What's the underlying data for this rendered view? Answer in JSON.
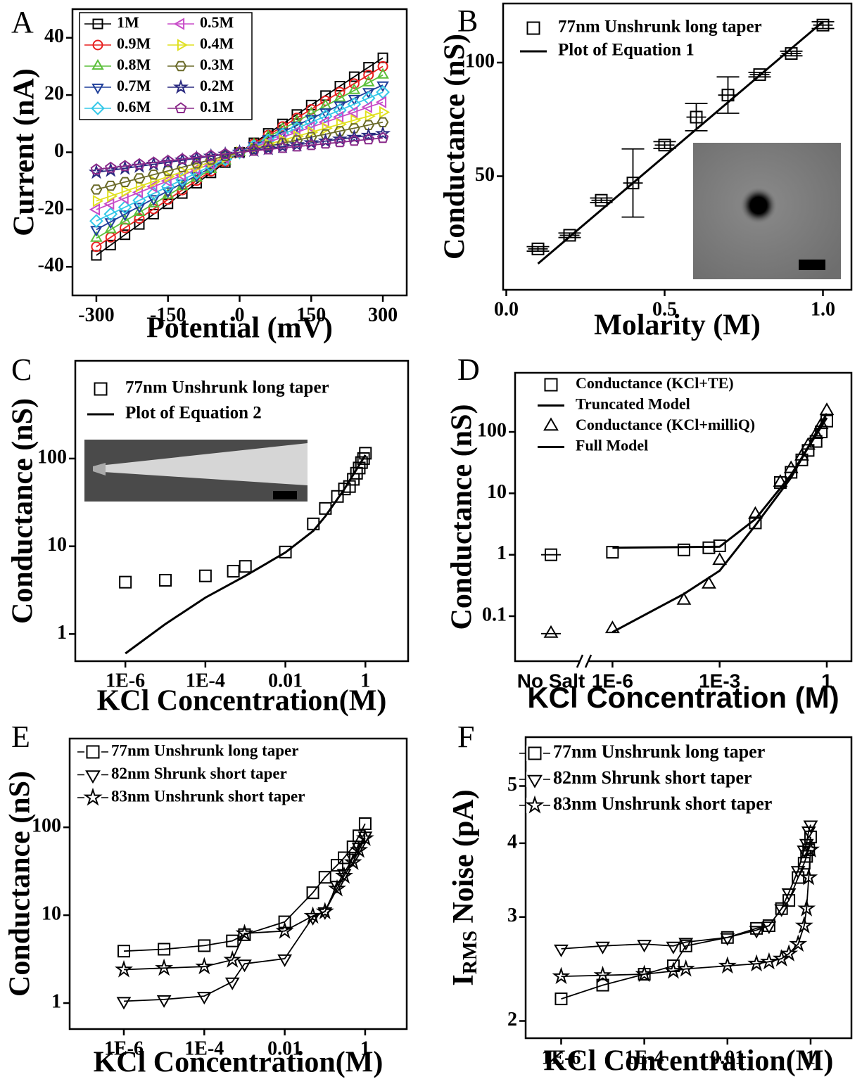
{
  "chart_data": [
    {
      "type": "line",
      "label": "A",
      "xlabel": "Potential (mV)",
      "ylabel": "Current (nA)",
      "xlim": [
        -350,
        350
      ],
      "ylim": [
        -50,
        50
      ],
      "xticks": [
        -300,
        -150,
        0,
        150,
        300
      ],
      "yticks": [
        -40,
        -20,
        0,
        20,
        40
      ],
      "x": [
        -300,
        -270,
        -240,
        -210,
        -180,
        -150,
        -120,
        -90,
        -60,
        -30,
        0,
        30,
        60,
        90,
        120,
        150,
        180,
        210,
        240,
        270,
        300
      ],
      "series": [
        {
          "name": "1M",
          "color": "#000000",
          "marker": "square",
          "line": true,
          "values": [
            -36,
            -32.4,
            -28.8,
            -25.2,
            -21.6,
            -18,
            -14.4,
            -10.8,
            -7.2,
            -3.6,
            0,
            3.3,
            6.6,
            9.9,
            13.2,
            16.5,
            19.8,
            23.1,
            26.4,
            29.7,
            33
          ]
        },
        {
          "name": "0.9M",
          "color": "#e8201f",
          "marker": "circle",
          "line": true,
          "values": [
            -33,
            -29.7,
            -26.4,
            -23.1,
            -19.8,
            -16.5,
            -13.2,
            -9.9,
            -6.6,
            -3.3,
            0,
            3,
            6,
            9,
            12,
            15,
            18,
            21,
            24,
            27,
            30
          ]
        },
        {
          "name": "0.8M",
          "color": "#5bbf3a",
          "marker": "tri-up",
          "line": true,
          "values": [
            -30,
            -27,
            -24,
            -21,
            -18,
            -15,
            -12,
            -9,
            -6,
            -3,
            0,
            2.7,
            5.4,
            8.1,
            10.8,
            13.5,
            16.2,
            18.9,
            21.6,
            24.3,
            27
          ]
        },
        {
          "name": "0.7M",
          "color": "#1f3f9a",
          "marker": "tri-down",
          "line": true,
          "values": [
            -27,
            -24.3,
            -21.6,
            -18.9,
            -16.2,
            -13.5,
            -10.8,
            -8.1,
            -5.4,
            -2.7,
            0,
            2.4,
            4.7,
            7.1,
            9.4,
            11.8,
            14.1,
            16.5,
            18.8,
            21.2,
            23.5
          ]
        },
        {
          "name": "0.6M",
          "color": "#35c8e8",
          "marker": "diamond",
          "line": true,
          "values": [
            -24,
            -21.6,
            -19.2,
            -16.8,
            -14.4,
            -12,
            -9.6,
            -7.2,
            -4.8,
            -2.4,
            0,
            2.1,
            4.2,
            6.3,
            8.4,
            10.5,
            12.6,
            14.7,
            16.8,
            18.9,
            21
          ]
        },
        {
          "name": "0.5M",
          "color": "#c84bc8",
          "marker": "tri-left",
          "line": true,
          "values": [
            -20,
            -18,
            -16,
            -14,
            -12,
            -10,
            -8,
            -6,
            -4,
            -2,
            0,
            1.8,
            3.5,
            5.3,
            7,
            8.8,
            10.5,
            12.3,
            14,
            15.8,
            17.5
          ]
        },
        {
          "name": "0.4M",
          "color": "#e0e020",
          "marker": "tri-right",
          "line": true,
          "values": [
            -17,
            -15.3,
            -13.6,
            -11.9,
            -10.2,
            -8.5,
            -6.8,
            -5.1,
            -3.4,
            -1.7,
            0,
            1.4,
            2.8,
            4.2,
            5.6,
            7,
            8.4,
            9.8,
            11.2,
            12.6,
            14
          ]
        },
        {
          "name": "0.3M",
          "color": "#6b6b2a",
          "marker": "hexagon",
          "line": true,
          "values": [
            -13,
            -11.7,
            -10.4,
            -9.1,
            -7.8,
            -6.5,
            -5.2,
            -3.9,
            -2.6,
            -1.3,
            0,
            1.1,
            2.1,
            3.2,
            4.2,
            5.3,
            6.3,
            7.4,
            8.4,
            9.5,
            10.5
          ]
        },
        {
          "name": "0.2M",
          "color": "#2a2a80",
          "marker": "star",
          "line": true,
          "values": [
            -7,
            -6.3,
            -5.6,
            -4.9,
            -4.2,
            -3.5,
            -2.8,
            -2.1,
            -1.4,
            -0.7,
            0,
            0.7,
            1.3,
            2,
            2.6,
            3.3,
            3.9,
            4.6,
            5.2,
            5.9,
            6.5
          ]
        },
        {
          "name": "0.1M",
          "color": "#8a2a8a",
          "marker": "pentagon",
          "line": true,
          "values": [
            -6,
            -5.4,
            -4.8,
            -4.2,
            -3.6,
            -3,
            -2.4,
            -1.8,
            -1.2,
            -0.6,
            0,
            0.5,
            1,
            1.5,
            2,
            2.5,
            3,
            3.5,
            4,
            4.5,
            5
          ]
        }
      ]
    },
    {
      "type": "scatter",
      "label": "B",
      "xlabel": "Molarity (M)",
      "ylabel": "Conductance (nS)",
      "xlim": [
        -0.01,
        1.09
      ],
      "ylim": [
        0,
        126
      ],
      "xticks": [
        {
          "value": 0,
          "label": "0.0"
        },
        {
          "value": 0.5,
          "label": "0.5"
        },
        {
          "value": 1,
          "label": "1.0"
        }
      ],
      "yticks": [
        50,
        100
      ],
      "series": [
        {
          "name": "77nm Unshrunk long taper",
          "color": "#000000",
          "marker": "square",
          "line": false,
          "x": [
            0.1,
            0.2,
            0.3,
            0.4,
            0.5,
            0.6,
            0.7,
            0.8,
            0.9,
            1.0
          ],
          "values": [
            18,
            24,
            39.4,
            47,
            63.7,
            76,
            85.7,
            94.7,
            104,
            116.5
          ],
          "errors": [
            1,
            1,
            1,
            15,
            1.5,
            6,
            8,
            1,
            1,
            1.5
          ]
        },
        {
          "name": "Plot of Equation 1",
          "color": "#000000",
          "marker": "none",
          "line": true,
          "x": [
            0.1,
            1.0
          ],
          "values": [
            11.5,
            118
          ]
        }
      ]
    },
    {
      "type": "scatter",
      "label": "C",
      "xlabel": "KCl Concentration(M)",
      "ylabel": "Conductance (nS)",
      "xlog": true,
      "ylog": true,
      "xlim": [
        5.6e-08,
        11.7
      ],
      "ylim": [
        0.49,
        1300
      ],
      "xticks": [
        {
          "value": 1e-06,
          "label": "1E-6"
        },
        {
          "value": 0.0001,
          "label": "1E-4"
        },
        0.01,
        1
      ],
      "yticks": [
        1,
        10,
        100
      ],
      "series": [
        {
          "name": "77nm Unshrunk long taper",
          "color": "#000000",
          "marker": "square",
          "line": false,
          "x": [
            1e-06,
            1e-05,
            0.0001,
            0.0005,
            0.001,
            0.01,
            0.05,
            0.1,
            0.2,
            0.3,
            0.4,
            0.5,
            0.6,
            0.7,
            0.8,
            0.9,
            1
          ],
          "values": [
            3.9,
            4.1,
            4.6,
            5.2,
            5.9,
            8.6,
            18,
            27,
            37,
            45,
            48,
            58,
            68,
            78,
            90,
            100,
            115
          ]
        },
        {
          "name": "Plot of Equation 2",
          "color": "#000000",
          "marker": "none",
          "line": true,
          "x": [
            1e-06,
            1e-05,
            0.0001,
            0.001,
            0.01,
            0.05,
            0.1,
            0.3,
            1
          ],
          "values": [
            0.6,
            1.3,
            2.6,
            4.6,
            8.5,
            15,
            22,
            45,
            110
          ]
        }
      ]
    },
    {
      "type": "scatter",
      "label": "D",
      "xlabel": "KCl Concentration (M)",
      "ylabel": "Conductance (nS)",
      "xlog": true,
      "ylog": true,
      "xbreak_label": "No Salt",
      "xlim": [
        2.3e-07,
        4.9
      ],
      "ylim": [
        0.0185,
        917
      ],
      "xticks": [
        {
          "value": 1e-06,
          "label": "1E-6"
        },
        {
          "value": 0.001,
          "label": "1E-3"
        },
        1
      ],
      "yticks": [
        0.1,
        1,
        10,
        100
      ],
      "series": [
        {
          "name": "Conductance (KCl+TE)",
          "color": "#000000",
          "marker": "square",
          "line": false,
          "no_salt_value": 1.0,
          "x": [
            1e-06,
            0.0001,
            0.0005,
            0.001,
            0.01,
            0.05,
            0.1,
            0.2,
            0.3,
            0.5,
            0.7,
            1
          ],
          "values": [
            1.1,
            1.2,
            1.3,
            1.4,
            3.3,
            15,
            22,
            35,
            50,
            70,
            100,
            150
          ]
        },
        {
          "name": "Truncated Model",
          "color": "#000000",
          "marker": "none",
          "line": true,
          "x": [
            1e-06,
            0.001,
            0.01,
            0.1,
            1
          ],
          "values": [
            1.3,
            1.35,
            3.8,
            20,
            170
          ]
        },
        {
          "name": "Conductance (KCl+milliQ)",
          "color": "#000000",
          "marker": "tri-up",
          "line": false,
          "no_salt_value": 0.052,
          "x": [
            1e-06,
            0.0001,
            0.0005,
            0.001,
            0.01,
            0.05,
            0.1,
            0.2,
            0.3,
            0.5,
            0.7,
            1
          ],
          "values": [
            0.062,
            0.18,
            0.33,
            0.8,
            4.5,
            15,
            25,
            40,
            60,
            90,
            130,
            220
          ]
        },
        {
          "name": "Full Model",
          "color": "#000000",
          "marker": "none",
          "line": true,
          "x": [
            1e-06,
            0.0001,
            0.001,
            0.01,
            0.1,
            1
          ],
          "values": [
            0.055,
            0.23,
            0.55,
            3,
            18,
            200
          ]
        }
      ]
    },
    {
      "type": "line",
      "label": "E",
      "xlabel": "KCl Concentration(M)",
      "ylabel": "Conductance (nS)",
      "xlog": true,
      "ylog": true,
      "xlim": [
        4.5e-08,
        10.8
      ],
      "ylim": [
        0.506,
        1023
      ],
      "xticks": [
        {
          "value": 1e-06,
          "label": "1E-6"
        },
        {
          "value": 0.0001,
          "label": "1E-4"
        },
        0.01,
        1
      ],
      "yticks": [
        1,
        10,
        100
      ],
      "x": [
        1e-06,
        1e-05,
        0.0001,
        0.0005,
        0.001,
        0.01,
        0.05,
        0.1,
        0.2,
        0.3,
        0.5,
        0.7,
        1
      ],
      "series": [
        {
          "name": "77nm Unshrunk long taper",
          "color": "#000000",
          "marker": "square",
          "line": true,
          "values": [
            3.9,
            4.1,
            4.5,
            5.1,
            6,
            8.4,
            18,
            27,
            37,
            45,
            60,
            80,
            110
          ]
        },
        {
          "name": "82nm Shrunk short taper",
          "color": "#000000",
          "marker": "tri-down",
          "line": true,
          "values": [
            1.05,
            1.1,
            1.2,
            1.75,
            2.8,
            3.2,
            9.5,
            11,
            22,
            30,
            45,
            60,
            80
          ]
        },
        {
          "name": "83nm Unshrunk short taper",
          "color": "#000000",
          "marker": "star",
          "line": true,
          "values": [
            2.4,
            2.5,
            2.6,
            3.1,
            6.2,
            6.6,
            9.8,
            11,
            20,
            28,
            40,
            55,
            75
          ]
        }
      ]
    },
    {
      "type": "line",
      "label": "F",
      "xlabel": "KCl Concentration(M)",
      "ylabel": [
        "I",
        "RMS",
        " Noise (pA)"
      ],
      "xlog": true,
      "ylog": true,
      "xlim": [
        1.4e-07,
        9.6
      ],
      "ylim": [
        1.87,
        6.05
      ],
      "xticks": [
        {
          "value": 1e-06,
          "label": "1E-6"
        },
        {
          "value": 0.0001,
          "label": "1E-4"
        },
        0.01,
        1
      ],
      "yticks": [
        2,
        3,
        4,
        5
      ],
      "x": [
        1e-06,
        1e-05,
        0.0001,
        0.0005,
        0.001,
        0.01,
        0.05,
        0.1,
        0.2,
        0.3,
        0.5,
        0.7,
        0.8,
        0.9,
        1
      ],
      "series": [
        {
          "name": "77nm Unshrunk long taper",
          "color": "#000000",
          "marker": "square",
          "line": true,
          "values": [
            2.18,
            2.3,
            2.4,
            2.48,
            2.68,
            2.77,
            2.87,
            2.9,
            3.1,
            3.2,
            3.5,
            3.7,
            3.8,
            3.9,
            4.1
          ]
        },
        {
          "name": "82nm Shrunk short taper",
          "color": "#000000",
          "marker": "tri-down",
          "line": true,
          "values": [
            2.65,
            2.68,
            2.7,
            2.68,
            2.72,
            2.77,
            2.85,
            2.9,
            3.1,
            3.3,
            3.6,
            3.9,
            4.0,
            4.2,
            4.3
          ]
        },
        {
          "name": "83nm Unshrunk short taper",
          "color": "#000000",
          "marker": "star",
          "line": true,
          "values": [
            2.38,
            2.39,
            2.4,
            2.43,
            2.45,
            2.48,
            2.5,
            2.52,
            2.55,
            2.6,
            2.7,
            2.9,
            3.1,
            3.5,
            3.9
          ]
        }
      ]
    }
  ]
}
